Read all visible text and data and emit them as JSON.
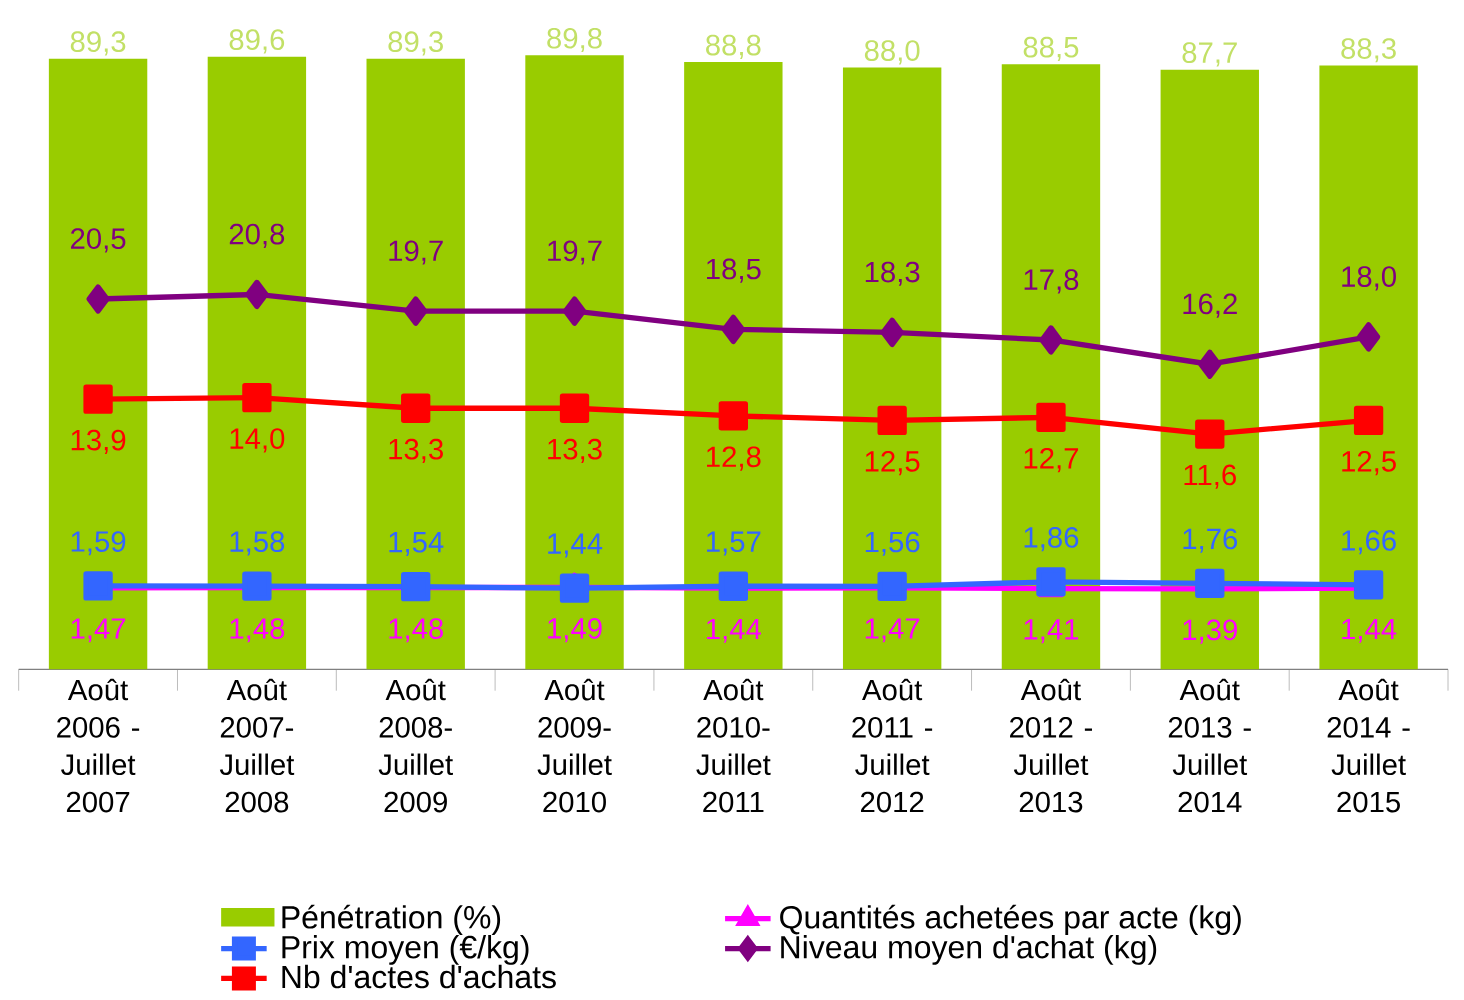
{
  "chart_data": {
    "type": "bar",
    "categories": [
      "Août 2006 - Juillet 2007",
      "Août 2007- Juillet 2008",
      "Août 2008- Juillet 2009",
      "Août 2009- Juillet 2010",
      "Août 2010- Juillet 2011",
      "Août 2011 - Juillet 2012",
      "Août 2012 - Juillet 2013",
      "Août 2013 - Juillet 2014",
      "Août 2014 - Juillet 2015"
    ],
    "series": [
      {
        "name": "Pénétration (%)",
        "color": "#99cc00",
        "values": [
          89.3,
          89.6,
          89.3,
          89.8,
          88.8,
          88.0,
          88.5,
          87.7,
          88.3
        ],
        "value_labels": [
          "89,3",
          "89,6",
          "89,3",
          "89,8",
          "88,8",
          "88,0",
          "88,5",
          "87,7",
          "88,3"
        ]
      },
      {
        "name": "Quantités achetées par acte (kg)",
        "type": "line",
        "axis": "y2",
        "marker": "triangle",
        "color": "#ff00ff",
        "values": [
          1.47,
          1.48,
          1.48,
          1.49,
          1.44,
          1.47,
          1.41,
          1.39,
          1.44
        ],
        "value_labels": [
          "1,47",
          "1,48",
          "1,48",
          "1,49",
          "1,44",
          "1,47",
          "1,41",
          "1,39",
          "1,44"
        ]
      },
      {
        "name": "Prix moyen (€/kg)",
        "type": "line",
        "axis": "y2",
        "marker": "square",
        "color": "#3366ff",
        "values": [
          1.59,
          1.58,
          1.54,
          1.44,
          1.57,
          1.56,
          1.86,
          1.76,
          1.66
        ],
        "value_labels": [
          "1,59",
          "1,58",
          "1,54",
          "1,44",
          "1,57",
          "1,56",
          "1,86",
          "1,76",
          "1,66"
        ]
      },
      {
        "name": "Niveau moyen d'achat (kg)",
        "type": "line",
        "axis": "y2",
        "marker": "diamond",
        "color": "#800080",
        "values": [
          20.5,
          20.8,
          19.7,
          19.7,
          18.5,
          18.3,
          17.8,
          16.2,
          18.0
        ],
        "value_labels": [
          "20,5",
          "20,8",
          "19,7",
          "19,7",
          "18,5",
          "18,3",
          "17,8",
          "16,2",
          "18,0"
        ]
      },
      {
        "name": "Nb d'actes d'achats",
        "type": "line",
        "axis": "y2",
        "marker": "square",
        "color": "#ff0000",
        "values": [
          13.9,
          14.0,
          13.3,
          13.3,
          12.8,
          12.5,
          12.7,
          11.6,
          12.5
        ],
        "value_labels": [
          "13,9",
          "14,0",
          "13,3",
          "13,3",
          "12,8",
          "12,5",
          "12,7",
          "11,6",
          "12,5"
        ]
      }
    ],
    "tick_labels": "x",
    "legend": "bottom"
  }
}
